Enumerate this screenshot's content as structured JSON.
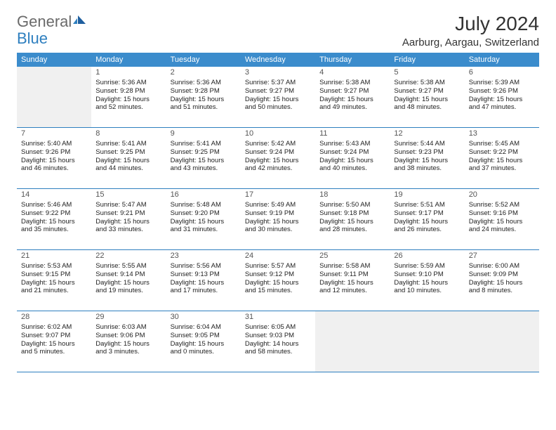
{
  "logo": {
    "text1": "General",
    "text2": "Blue"
  },
  "title": "July 2024",
  "location": "Aarburg, Aargau, Switzerland",
  "colors": {
    "header_bg": "#3b8ccc",
    "header_text": "#ffffff",
    "rule": "#2e7fbf",
    "empty_bg": "#f0f0f0",
    "logo_gray": "#6a6a6a",
    "logo_blue": "#2e7fbf"
  },
  "day_labels": [
    "Sunday",
    "Monday",
    "Tuesday",
    "Wednesday",
    "Thursday",
    "Friday",
    "Saturday"
  ],
  "weeks": [
    [
      {
        "empty": true
      },
      {
        "n": "1",
        "sr": "5:36 AM",
        "ss": "9:28 PM",
        "d1": "15 hours",
        "d2": "and 52 minutes."
      },
      {
        "n": "2",
        "sr": "5:36 AM",
        "ss": "9:28 PM",
        "d1": "15 hours",
        "d2": "and 51 minutes."
      },
      {
        "n": "3",
        "sr": "5:37 AM",
        "ss": "9:27 PM",
        "d1": "15 hours",
        "d2": "and 50 minutes."
      },
      {
        "n": "4",
        "sr": "5:38 AM",
        "ss": "9:27 PM",
        "d1": "15 hours",
        "d2": "and 49 minutes."
      },
      {
        "n": "5",
        "sr": "5:38 AM",
        "ss": "9:27 PM",
        "d1": "15 hours",
        "d2": "and 48 minutes."
      },
      {
        "n": "6",
        "sr": "5:39 AM",
        "ss": "9:26 PM",
        "d1": "15 hours",
        "d2": "and 47 minutes."
      }
    ],
    [
      {
        "n": "7",
        "sr": "5:40 AM",
        "ss": "9:26 PM",
        "d1": "15 hours",
        "d2": "and 46 minutes."
      },
      {
        "n": "8",
        "sr": "5:41 AM",
        "ss": "9:25 PM",
        "d1": "15 hours",
        "d2": "and 44 minutes."
      },
      {
        "n": "9",
        "sr": "5:41 AM",
        "ss": "9:25 PM",
        "d1": "15 hours",
        "d2": "and 43 minutes."
      },
      {
        "n": "10",
        "sr": "5:42 AM",
        "ss": "9:24 PM",
        "d1": "15 hours",
        "d2": "and 42 minutes."
      },
      {
        "n": "11",
        "sr": "5:43 AM",
        "ss": "9:24 PM",
        "d1": "15 hours",
        "d2": "and 40 minutes."
      },
      {
        "n": "12",
        "sr": "5:44 AM",
        "ss": "9:23 PM",
        "d1": "15 hours",
        "d2": "and 38 minutes."
      },
      {
        "n": "13",
        "sr": "5:45 AM",
        "ss": "9:22 PM",
        "d1": "15 hours",
        "d2": "and 37 minutes."
      }
    ],
    [
      {
        "n": "14",
        "sr": "5:46 AM",
        "ss": "9:22 PM",
        "d1": "15 hours",
        "d2": "and 35 minutes."
      },
      {
        "n": "15",
        "sr": "5:47 AM",
        "ss": "9:21 PM",
        "d1": "15 hours",
        "d2": "and 33 minutes."
      },
      {
        "n": "16",
        "sr": "5:48 AM",
        "ss": "9:20 PM",
        "d1": "15 hours",
        "d2": "and 31 minutes."
      },
      {
        "n": "17",
        "sr": "5:49 AM",
        "ss": "9:19 PM",
        "d1": "15 hours",
        "d2": "and 30 minutes."
      },
      {
        "n": "18",
        "sr": "5:50 AM",
        "ss": "9:18 PM",
        "d1": "15 hours",
        "d2": "and 28 minutes."
      },
      {
        "n": "19",
        "sr": "5:51 AM",
        "ss": "9:17 PM",
        "d1": "15 hours",
        "d2": "and 26 minutes."
      },
      {
        "n": "20",
        "sr": "5:52 AM",
        "ss": "9:16 PM",
        "d1": "15 hours",
        "d2": "and 24 minutes."
      }
    ],
    [
      {
        "n": "21",
        "sr": "5:53 AM",
        "ss": "9:15 PM",
        "d1": "15 hours",
        "d2": "and 21 minutes."
      },
      {
        "n": "22",
        "sr": "5:55 AM",
        "ss": "9:14 PM",
        "d1": "15 hours",
        "d2": "and 19 minutes."
      },
      {
        "n": "23",
        "sr": "5:56 AM",
        "ss": "9:13 PM",
        "d1": "15 hours",
        "d2": "and 17 minutes."
      },
      {
        "n": "24",
        "sr": "5:57 AM",
        "ss": "9:12 PM",
        "d1": "15 hours",
        "d2": "and 15 minutes."
      },
      {
        "n": "25",
        "sr": "5:58 AM",
        "ss": "9:11 PM",
        "d1": "15 hours",
        "d2": "and 12 minutes."
      },
      {
        "n": "26",
        "sr": "5:59 AM",
        "ss": "9:10 PM",
        "d1": "15 hours",
        "d2": "and 10 minutes."
      },
      {
        "n": "27",
        "sr": "6:00 AM",
        "ss": "9:09 PM",
        "d1": "15 hours",
        "d2": "and 8 minutes."
      }
    ],
    [
      {
        "n": "28",
        "sr": "6:02 AM",
        "ss": "9:07 PM",
        "d1": "15 hours",
        "d2": "and 5 minutes."
      },
      {
        "n": "29",
        "sr": "6:03 AM",
        "ss": "9:06 PM",
        "d1": "15 hours",
        "d2": "and 3 minutes."
      },
      {
        "n": "30",
        "sr": "6:04 AM",
        "ss": "9:05 PM",
        "d1": "15 hours",
        "d2": "and 0 minutes."
      },
      {
        "n": "31",
        "sr": "6:05 AM",
        "ss": "9:03 PM",
        "d1": "14 hours",
        "d2": "and 58 minutes."
      },
      {
        "empty": true
      },
      {
        "empty": true
      },
      {
        "empty": true
      }
    ]
  ],
  "labels": {
    "sunrise": "Sunrise: ",
    "sunset": "Sunset: ",
    "daylight": "Daylight: "
  }
}
